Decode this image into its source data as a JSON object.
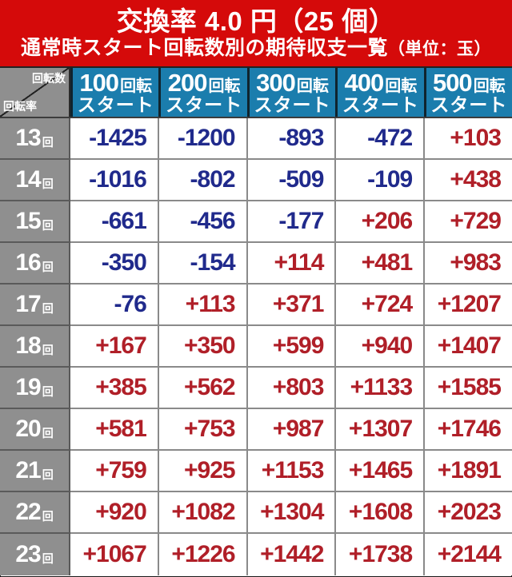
{
  "title": {
    "line1": "交換率 4.0 円（25 個）",
    "line2_main": "通常時スタート回転数別の期待収支一覧",
    "line2_unit": "（単位：玉）"
  },
  "corner": {
    "top_label": "回転数",
    "bottom_label": "回転率"
  },
  "column_sub_label": "スタート",
  "column_unit_label": "回転",
  "columns": [
    {
      "number": "100"
    },
    {
      "number": "200"
    },
    {
      "number": "300"
    },
    {
      "number": "400"
    },
    {
      "number": "500"
    }
  ],
  "row_suffix": "回",
  "rows": [
    {
      "label": "13",
      "values": [
        "-1425",
        "-1200",
        "-893",
        "-472",
        "+103"
      ]
    },
    {
      "label": "14",
      "values": [
        "-1016",
        "-802",
        "-509",
        "-109",
        "+438"
      ]
    },
    {
      "label": "15",
      "values": [
        "-661",
        "-456",
        "-177",
        "+206",
        "+729"
      ]
    },
    {
      "label": "16",
      "values": [
        "-350",
        "-154",
        "+114",
        "+481",
        "+983"
      ]
    },
    {
      "label": "17",
      "values": [
        "-76",
        "+113",
        "+371",
        "+724",
        "+1207"
      ]
    },
    {
      "label": "18",
      "values": [
        "+167",
        "+350",
        "+599",
        "+940",
        "+1407"
      ]
    },
    {
      "label": "19",
      "values": [
        "+385",
        "+562",
        "+803",
        "+1133",
        "+1585"
      ]
    },
    {
      "label": "20",
      "values": [
        "+581",
        "+753",
        "+987",
        "+1307",
        "+1746"
      ]
    },
    {
      "label": "21",
      "values": [
        "+759",
        "+925",
        "+1153",
        "+1465",
        "+1891"
      ]
    },
    {
      "label": "22",
      "values": [
        "+920",
        "+1082",
        "+1304",
        "+1608",
        "+2023"
      ]
    },
    {
      "label": "23",
      "values": [
        "+1067",
        "+1226",
        "+1442",
        "+1738",
        "+2144"
      ]
    }
  ],
  "colors": {
    "banner_red": "#d50a0a",
    "header_blue": "#1b7dad",
    "row_header_gray": "#8f8f8f",
    "negative_navy": "#202a8c",
    "positive_crimson": "#b01f28",
    "grid_gray": "#8a8a8a"
  }
}
